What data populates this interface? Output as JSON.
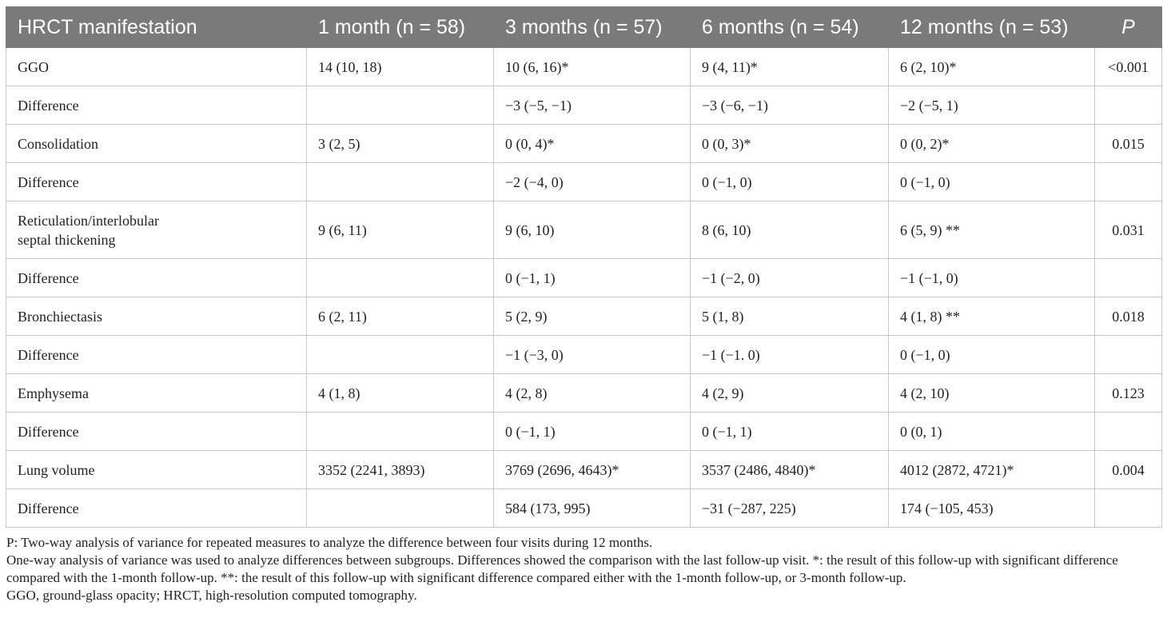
{
  "table": {
    "headers": [
      "HRCT manifestation",
      "1 month (n = 58)",
      "3 months (n = 57)",
      "6 months (n = 54)",
      "12 months (n = 53)",
      "P"
    ],
    "rows": [
      [
        "GGO",
        "14 (10, 18)",
        "10 (6, 16)*",
        "9 (4, 11)*",
        "6 (2, 10)*",
        "<0.001"
      ],
      [
        "Difference",
        "",
        "−3 (−5, −1)",
        "−3 (−6, −1)",
        "−2 (−5, 1)",
        ""
      ],
      [
        "Consolidation",
        "3 (2, 5)",
        "0 (0, 4)*",
        "0 (0, 3)*",
        "0 (0, 2)*",
        "0.015"
      ],
      [
        "Difference",
        "",
        "−2 (−4, 0)",
        "0 (−1, 0)",
        "0 (−1, 0)",
        ""
      ],
      [
        "Reticulation/interlobular septal thickening",
        "9 (6, 11)",
        "9 (6, 10)",
        "8 (6, 10)",
        "6 (5, 9) **",
        "0.031"
      ],
      [
        "Difference",
        "",
        "0 (−1, 1)",
        "−1 (−2, 0)",
        "−1 (−1, 0)",
        ""
      ],
      [
        "Bronchiectasis",
        "6 (2, 11)",
        "5 (2, 9)",
        "5 (1, 8)",
        "4 (1, 8) **",
        "0.018"
      ],
      [
        "Difference",
        "",
        "−1 (−3, 0)",
        "−1 (−1. 0)",
        "0 (−1, 0)",
        ""
      ],
      [
        "Emphysema",
        "4 (1, 8)",
        "4 (2, 8)",
        "4 (2, 9)",
        "4 (2, 10)",
        "0.123"
      ],
      [
        "Difference",
        "",
        "0 (−1, 1)",
        "0 (−1, 1)",
        "0 (0, 1)",
        ""
      ],
      [
        "Lung volume",
        "3352 (2241, 3893)",
        "3769 (2696, 4643)*",
        "3537 (2486, 4840)*",
        "4012 (2872, 4721)*",
        "0.004"
      ],
      [
        "Difference",
        "",
        "584 (173, 995)",
        "−31 (−287, 225)",
        "174 (−105, 453)",
        ""
      ]
    ]
  },
  "notes": [
    "P: Two-way analysis of variance for repeated measures to analyze the difference between four visits during 12 months.",
    "One-way analysis of variance was used to analyze differences between subgroups. Differences showed the comparison with the last follow-up visit. *: the result of this follow-up with significant difference compared with the 1-month follow-up. **: the result of this follow-up with significant difference compared either with the 1-month follow-up, or 3-month follow-up.",
    "GGO, ground-glass opacity; HRCT, high-resolution computed tomography."
  ],
  "colors": {
    "header_bg": "#7a7a7a",
    "header_text": "#ffffff",
    "grid": "#c8c8c8"
  }
}
